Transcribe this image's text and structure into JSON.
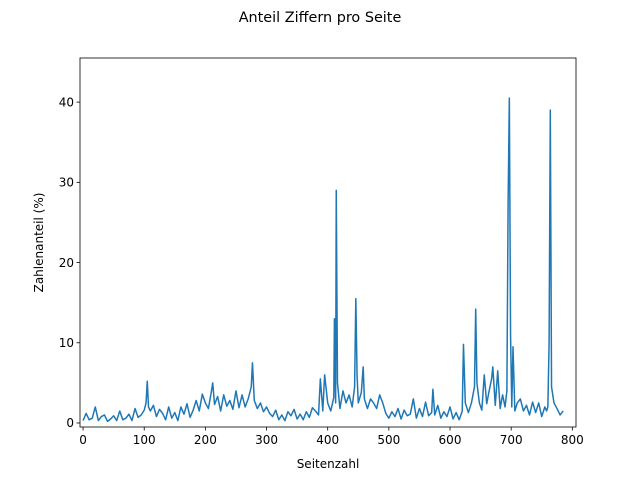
{
  "chart_data": {
    "type": "line",
    "title": "Anteil Ziffern pro Seite",
    "xlabel": "Seitenzahl",
    "ylabel": "Zahlenanteil (%)",
    "xlim": [
      -5,
      806
    ],
    "ylim": [
      -0.5,
      45.5
    ],
    "xticks": [
      0,
      100,
      200,
      300,
      400,
      500,
      600,
      700,
      800
    ],
    "yticks": [
      0,
      10,
      20,
      30,
      40
    ],
    "grid": false,
    "legend": "none",
    "color": "#1f77b4",
    "series": [
      {
        "x": [
          0,
          5,
          10,
          15,
          20,
          25,
          30,
          35,
          40,
          45,
          50,
          55,
          60,
          65,
          70,
          75,
          80,
          85,
          90,
          95,
          100,
          103,
          105,
          107,
          110,
          115,
          120,
          125,
          130,
          135,
          140,
          145,
          150,
          155,
          160,
          165,
          170,
          175,
          180,
          185,
          190,
          195,
          200,
          205,
          210,
          212,
          215,
          220,
          225,
          230,
          235,
          240,
          245,
          250,
          255,
          260,
          265,
          270,
          275,
          277,
          280,
          285,
          290,
          295,
          300,
          305,
          310,
          315,
          320,
          325,
          330,
          335,
          340,
          345,
          350,
          355,
          360,
          365,
          370,
          375,
          380,
          385,
          388,
          392,
          395,
          400,
          405,
          410,
          411,
          413,
          414,
          416,
          420,
          425,
          430,
          435,
          440,
          444,
          446,
          448,
          450,
          455,
          458,
          460,
          465,
          470,
          475,
          480,
          485,
          490,
          495,
          500,
          505,
          510,
          515,
          520,
          525,
          530,
          535,
          540,
          545,
          550,
          555,
          560,
          565,
          570,
          572,
          575,
          580,
          585,
          590,
          595,
          600,
          605,
          610,
          615,
          620,
          622,
          625,
          630,
          635,
          640,
          642,
          644,
          648,
          652,
          656,
          660,
          664,
          668,
          670,
          674,
          678,
          682,
          686,
          690,
          693,
          695,
          697,
          699,
          701,
          703,
          706,
          710,
          715,
          720,
          725,
          730,
          735,
          740,
          745,
          750,
          755,
          758,
          760,
          762,
          764,
          766,
          770,
          775,
          780,
          785
        ],
        "y": [
          0.3,
          1.2,
          0.4,
          0.6,
          2.0,
          0.3,
          0.8,
          1.0,
          0.2,
          0.5,
          0.9,
          0.3,
          1.5,
          0.4,
          0.6,
          1.1,
          0.3,
          1.8,
          0.7,
          1.0,
          1.6,
          2.5,
          5.2,
          2.0,
          1.5,
          2.2,
          0.8,
          1.7,
          1.2,
          0.4,
          2.0,
          0.6,
          1.3,
          0.3,
          2.0,
          1.1,
          2.4,
          0.7,
          1.6,
          2.8,
          1.5,
          3.6,
          2.5,
          1.8,
          4.0,
          5.0,
          2.3,
          3.3,
          1.5,
          3.5,
          2.1,
          2.8,
          1.7,
          4.0,
          1.9,
          3.5,
          2.0,
          3.0,
          4.5,
          7.5,
          2.8,
          1.8,
          2.5,
          1.4,
          2.0,
          1.2,
          0.8,
          1.6,
          0.4,
          1.0,
          0.3,
          1.4,
          0.9,
          1.7,
          0.5,
          1.1,
          0.4,
          1.4,
          0.7,
          1.9,
          1.5,
          1.0,
          5.5,
          1.5,
          6.0,
          2.5,
          1.5,
          3.2,
          13.0,
          2.5,
          29.0,
          5.0,
          1.8,
          4.0,
          2.5,
          3.5,
          2.0,
          4.5,
          15.5,
          6.0,
          2.5,
          3.8,
          7.0,
          3.0,
          1.8,
          3.0,
          2.5,
          1.8,
          3.5,
          2.5,
          1.2,
          0.6,
          1.4,
          0.8,
          1.8,
          0.5,
          1.6,
          0.9,
          1.1,
          3.0,
          0.6,
          1.8,
          0.8,
          2.6,
          0.9,
          1.3,
          4.2,
          1.0,
          2.2,
          0.6,
          1.4,
          0.8,
          2.0,
          0.5,
          1.3,
          0.4,
          1.5,
          9.8,
          2.5,
          1.3,
          2.5,
          4.5,
          14.2,
          5.0,
          2.5,
          1.6,
          6.0,
          2.4,
          4.0,
          5.5,
          7.0,
          2.2,
          6.5,
          1.8,
          3.5,
          2.0,
          4.0,
          27.5,
          40.5,
          11.0,
          2.0,
          9.5,
          1.5,
          2.5,
          3.0,
          1.5,
          2.2,
          1.0,
          2.6,
          1.3,
          2.5,
          0.8,
          2.0,
          1.5,
          2.0,
          10.0,
          39.0,
          4.5,
          2.5,
          1.8,
          1.0,
          1.5
        ]
      }
    ]
  }
}
